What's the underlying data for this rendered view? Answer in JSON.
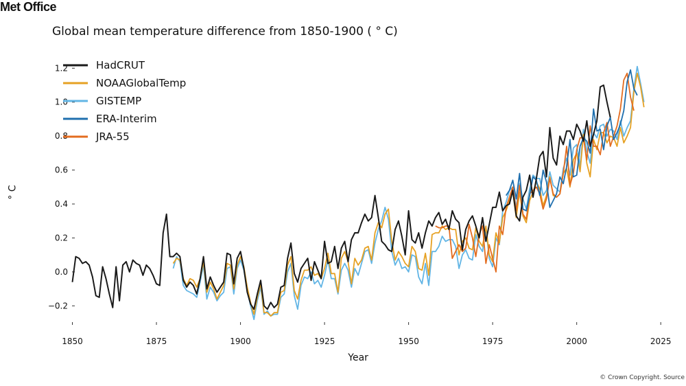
{
  "header": {
    "logo_text": "Met Office",
    "credit": "© Crown Copyright. Source"
  },
  "chart_data": {
    "type": "line",
    "title": "Global mean temperature difference from 1850-1900 ( ° C)",
    "xlabel": "Year",
    "ylabel": "° C",
    "xlim": [
      1845,
      2027
    ],
    "ylim": [
      -0.3,
      1.27
    ],
    "xticks": [
      1850,
      1875,
      1900,
      1925,
      1950,
      1975,
      2000,
      2025
    ],
    "yticks": [
      -0.2,
      0.0,
      0.2,
      0.4,
      0.6,
      0.8,
      1.0,
      1.2
    ],
    "ytick_labels": [
      "−0.2",
      "0.0",
      "0.2",
      "0.4",
      "0.6",
      "0.8",
      "1.0",
      "1.2"
    ],
    "legend": {
      "placement": "top-left"
    },
    "grid": false,
    "series": [
      {
        "name": "HadCRUT",
        "color": "#1a1a1a",
        "start_year": 1850,
        "values": [
          -0.06,
          0.09,
          0.08,
          0.05,
          0.06,
          0.04,
          -0.03,
          -0.14,
          -0.15,
          0.03,
          -0.04,
          -0.13,
          -0.21,
          0.03,
          -0.17,
          0.04,
          0.06,
          0.0,
          0.07,
          0.05,
          0.04,
          -0.02,
          0.04,
          0.02,
          -0.02,
          -0.07,
          -0.08,
          0.23,
          0.34,
          0.09,
          0.09,
          0.11,
          0.09,
          -0.05,
          -0.09,
          -0.06,
          -0.08,
          -0.13,
          -0.04,
          0.09,
          -0.1,
          -0.03,
          -0.08,
          -0.12,
          -0.09,
          -0.06,
          0.11,
          0.1,
          -0.07,
          0.08,
          0.12,
          0.02,
          -0.12,
          -0.19,
          -0.22,
          -0.13,
          -0.05,
          -0.2,
          -0.22,
          -0.18,
          -0.21,
          -0.19,
          -0.09,
          -0.08,
          0.08,
          0.17,
          -0.01,
          -0.06,
          0.02,
          0.05,
          0.08,
          -0.05,
          0.06,
          0.01,
          -0.04,
          0.18,
          0.05,
          0.06,
          0.15,
          0.02,
          0.14,
          0.18,
          0.06,
          0.19,
          0.23,
          0.23,
          0.29,
          0.34,
          0.3,
          0.32,
          0.45,
          0.32,
          0.18,
          0.16,
          0.13,
          0.12,
          0.25,
          0.3,
          0.21,
          0.1,
          0.36,
          0.19,
          0.17,
          0.23,
          0.14,
          0.23,
          0.3,
          0.27,
          0.32,
          0.35,
          0.28,
          0.31,
          0.25,
          0.36,
          0.31,
          0.29,
          0.13,
          0.25,
          0.3,
          0.33,
          0.27,
          0.2,
          0.32,
          0.18,
          0.28,
          0.38,
          0.38,
          0.47,
          0.36,
          0.39,
          0.4,
          0.48,
          0.33,
          0.3,
          0.44,
          0.48,
          0.57,
          0.44,
          0.55,
          0.68,
          0.71,
          0.56,
          0.85,
          0.67,
          0.63,
          0.8,
          0.75,
          0.83,
          0.83,
          0.78,
          0.87,
          0.83,
          0.77,
          0.89,
          0.74,
          0.81,
          0.89,
          1.09,
          1.1,
          1.0,
          0.91
        ]
      },
      {
        "name": "NOAAGlobalTemp",
        "color": "#e6a123",
        "start_year": 1880,
        "values": [
          0.05,
          0.08,
          0.07,
          -0.04,
          -0.08,
          -0.04,
          -0.05,
          -0.09,
          -0.04,
          0.06,
          -0.12,
          -0.06,
          -0.1,
          -0.16,
          -0.12,
          -0.08,
          0.05,
          0.04,
          -0.1,
          0.04,
          0.09,
          0.03,
          -0.09,
          -0.18,
          -0.25,
          -0.15,
          -0.07,
          -0.24,
          -0.24,
          -0.26,
          -0.24,
          -0.24,
          -0.12,
          -0.11,
          0.04,
          0.09,
          -0.11,
          -0.16,
          -0.05,
          0.01,
          0.01,
          0.03,
          -0.02,
          -0.01,
          -0.04,
          0.02,
          0.11,
          -0.01,
          -0.01,
          -0.12,
          0.08,
          0.12,
          0.06,
          -0.07,
          0.08,
          0.04,
          0.07,
          0.14,
          0.15,
          0.07,
          0.23,
          0.29,
          0.26,
          0.34,
          0.37,
          0.18,
          0.07,
          0.12,
          0.09,
          0.05,
          0.03,
          0.15,
          0.12,
          0.02,
          0.01,
          0.11,
          -0.02,
          0.22,
          0.23,
          0.23,
          0.27,
          0.25,
          0.26,
          0.25,
          0.25,
          0.1,
          0.18,
          0.2,
          0.14,
          0.13,
          0.26,
          0.18,
          0.15,
          0.27,
          0.1,
          0.06,
          0.23,
          0.17,
          0.32,
          0.36,
          0.42,
          0.47,
          0.32,
          0.47,
          0.33,
          0.29,
          0.42,
          0.47,
          0.53,
          0.49,
          0.39,
          0.45,
          0.56,
          0.45,
          0.44,
          0.46,
          0.58,
          0.61,
          0.5,
          0.66,
          0.7,
          0.59,
          0.81,
          0.64,
          0.56,
          0.78,
          0.72,
          0.82,
          0.82,
          0.76,
          0.8,
          0.79,
          0.74,
          0.85,
          0.76,
          0.8,
          0.85,
          1.06,
          1.17,
          1.09,
          0.97
        ]
      },
      {
        "name": "GISTEMP",
        "color": "#62b5e5",
        "start_year": 1880,
        "values": [
          0.02,
          0.09,
          0.06,
          -0.08,
          -0.11,
          -0.12,
          -0.13,
          -0.15,
          -0.06,
          0.04,
          -0.16,
          -0.09,
          -0.12,
          -0.17,
          -0.14,
          -0.12,
          0.02,
          0.03,
          -0.13,
          0.02,
          0.07,
          0.01,
          -0.11,
          -0.2,
          -0.28,
          -0.17,
          -0.09,
          -0.25,
          -0.23,
          -0.26,
          -0.25,
          -0.25,
          -0.15,
          -0.13,
          0.0,
          0.05,
          -0.14,
          -0.22,
          -0.08,
          -0.03,
          -0.04,
          0.0,
          -0.07,
          -0.05,
          -0.09,
          -0.02,
          0.07,
          -0.04,
          -0.04,
          -0.13,
          0.01,
          0.05,
          0.01,
          -0.09,
          0.02,
          -0.02,
          0.05,
          0.12,
          0.13,
          0.05,
          0.17,
          0.25,
          0.3,
          0.38,
          0.31,
          0.12,
          0.04,
          0.08,
          0.02,
          0.03,
          0.0,
          0.1,
          0.09,
          -0.03,
          -0.07,
          0.05,
          -0.08,
          0.12,
          0.12,
          0.15,
          0.21,
          0.18,
          0.19,
          0.19,
          0.15,
          0.02,
          0.1,
          0.13,
          0.08,
          0.07,
          0.22,
          0.15,
          0.12,
          0.26,
          0.08,
          0.03,
          0.2,
          0.16,
          0.36,
          0.41,
          0.48,
          0.5,
          0.38,
          0.52,
          0.43,
          0.37,
          0.49,
          0.57,
          0.55,
          0.55,
          0.45,
          0.48,
          0.59,
          0.51,
          0.49,
          0.47,
          0.61,
          0.67,
          0.57,
          0.73,
          0.75,
          0.62,
          0.84,
          0.71,
          0.64,
          0.82,
          0.79,
          0.86,
          0.87,
          0.8,
          0.84,
          0.83,
          0.78,
          0.89,
          0.8,
          0.85,
          0.89,
          1.08,
          1.21,
          1.11,
          1.0
        ]
      },
      {
        "name": "ERA-Interim",
        "color": "#1f6fae",
        "start_year": 1979,
        "values": [
          0.45,
          0.48,
          0.54,
          0.43,
          0.58,
          0.37,
          0.36,
          0.45,
          0.56,
          0.54,
          0.45,
          0.6,
          0.53,
          0.38,
          0.42,
          0.46,
          0.56,
          0.52,
          0.62,
          0.78,
          0.56,
          0.57,
          0.74,
          0.79,
          0.77,
          0.7,
          0.96,
          0.83,
          0.84,
          0.72,
          0.86,
          0.91,
          0.78,
          0.82,
          0.87,
          0.95,
          1.12,
          1.19,
          1.08,
          1.04
        ]
      },
      {
        "name": "JRA-55",
        "color": "#e36c1f",
        "start_year": 1958,
        "values": [
          0.27,
          0.26,
          0.26,
          0.27,
          0.27,
          0.08,
          0.12,
          0.16,
          0.12,
          0.14,
          0.28,
          0.2,
          0.09,
          0.22,
          0.27,
          0.05,
          0.16,
          0.08,
          0.0,
          0.27,
          0.22,
          0.38,
          0.44,
          0.5,
          0.36,
          0.51,
          0.34,
          0.31,
          0.46,
          0.48,
          0.5,
          0.46,
          0.37,
          0.43,
          0.55,
          0.46,
          0.44,
          0.46,
          0.58,
          0.74,
          0.51,
          0.58,
          0.72,
          0.79,
          0.79,
          0.66,
          0.86,
          0.74,
          0.74,
          0.69,
          0.82,
          0.88,
          0.74,
          0.8,
          0.86,
          0.96,
          1.13,
          1.17,
          1.03,
          0.95
        ]
      }
    ]
  }
}
